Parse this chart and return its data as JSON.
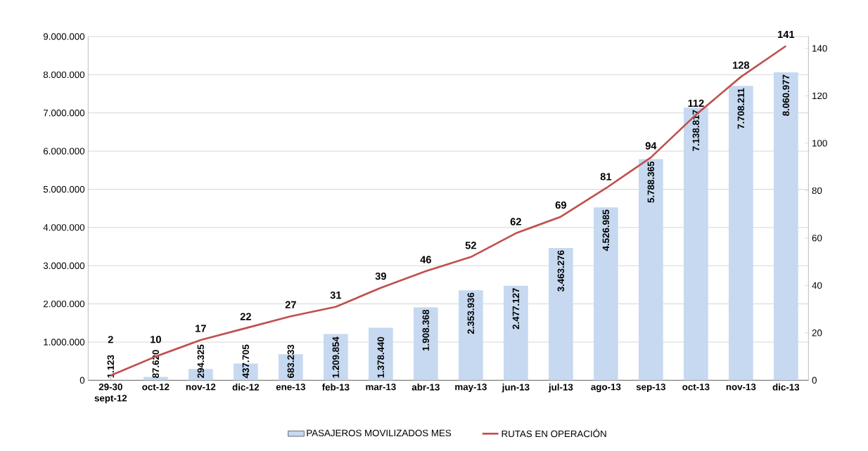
{
  "chart_data": {
    "type": "bar",
    "categories": [
      "29-30 sept-12",
      "oct-12",
      "nov-12",
      "dic-12",
      "ene-13",
      "feb-13",
      "mar-13",
      "abr-13",
      "may-13",
      "jun-13",
      "jul-13",
      "ago-13",
      "sep-13",
      "oct-13",
      "nov-13",
      "dic-13"
    ],
    "series": [
      {
        "name": "PASAJEROS MOVILIZADOS MES",
        "color": "#c6d9f1",
        "values": [
          1123,
          87620,
          294325,
          437705,
          683233,
          1209854,
          1378440,
          1908368,
          2353936,
          2477127,
          3463276,
          4526985,
          5788365,
          7138817,
          7708211,
          8060977
        ],
        "value_labels": [
          "1.123",
          "87.620",
          "294.325",
          "437.705",
          "683.233",
          "1.209.854",
          "1.378.440",
          "1.908.368",
          "2.353.936",
          "2.477.127",
          "3.463.276",
          "4.526.985",
          "5.788.365",
          "7.138.817",
          "7.708.211",
          "8.060.977"
        ]
      },
      {
        "name": "RUTAS EN OPERACIÓN",
        "type": "line",
        "axis": "y2",
        "color": "#c0504d",
        "values": [
          2,
          10,
          17,
          22,
          27,
          31,
          39,
          46,
          52,
          62,
          69,
          81,
          94,
          112,
          128,
          141
        ],
        "value_labels": [
          "2",
          "10",
          "17",
          "22",
          "27",
          "31",
          "39",
          "46",
          "52",
          "62",
          "69",
          "81",
          "94",
          "112",
          "128",
          "141"
        ]
      }
    ],
    "ylim": [
      0,
      9000000
    ],
    "yticks": [
      0,
      {
        "value": 1000000,
        "label": "1.000.000"
      },
      {
        "value": 2000000,
        "label": "2.000.000"
      },
      {
        "value": 3000000,
        "label": "3.000.000"
      },
      {
        "value": 4000000,
        "label": "4.000.000"
      },
      {
        "value": 5000000,
        "label": "5.000.000"
      },
      {
        "value": 6000000,
        "label": "6.000.000"
      },
      {
        "value": 7000000,
        "label": "7.000.000"
      },
      {
        "value": 8000000,
        "label": "8.000.000"
      },
      {
        "value": 9000000,
        "label": "9.000.000"
      }
    ],
    "y2lim": [
      0,
      145
    ],
    "y2ticks": [
      0,
      20,
      40,
      60,
      80,
      100,
      120,
      140
    ],
    "grid": "y",
    "legend": "bottom",
    "marker": "none",
    "line_style": "solid"
  }
}
